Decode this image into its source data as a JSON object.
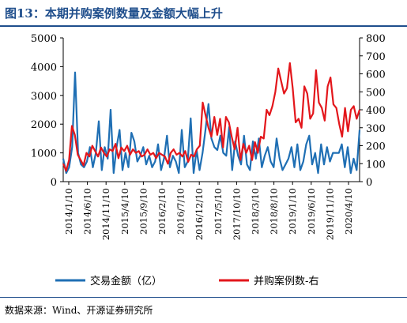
{
  "figure": {
    "title": "图13：本期并购案例数量及金额大幅上升",
    "source": "数据来源：Wind、开源证券研究所"
  },
  "colors": {
    "amount": "#1f6fb4",
    "count": "#e3161b",
    "title": "#1f4e8c"
  },
  "chart_data": {
    "type": "line",
    "title": "",
    "xlabel": "",
    "ylabel": "",
    "ylim": [
      0,
      5000
    ],
    "y2lim": [
      0,
      800
    ],
    "yticks": [
      "0",
      "1000",
      "2000",
      "3000",
      "4000",
      "5000"
    ],
    "y2ticks": [
      "0",
      "100",
      "200",
      "300",
      "400",
      "500",
      "600",
      "700",
      "800"
    ],
    "xticks": [
      "2014/1/10",
      "2014/6/10",
      "2014/11/10",
      "2015/4/10",
      "2015/9/10",
      "2016/2/10",
      "2016/7/10",
      "2016/12/10",
      "2017/5/10",
      "2017/10/10",
      "2018/3/10",
      "2018/8/10",
      "2019/1/10",
      "2019/6/10",
      "2019/11/10",
      "2020/4/10"
    ],
    "grid": false,
    "legend_position": "bottom",
    "series": [
      {
        "name": "交易金额（亿）",
        "axis": "left",
        "color": "#1f6fb4",
        "values": [
          800,
          300,
          500,
          1200,
          3800,
          1000,
          600,
          500,
          700,
          1200,
          500,
          1000,
          2100,
          400,
          1200,
          800,
          2500,
          300,
          1200,
          1800,
          400,
          1000,
          500,
          1700,
          1400,
          700,
          900,
          1200,
          600,
          900,
          500,
          700,
          1300,
          400,
          800,
          1600,
          500,
          900,
          700,
          300,
          1800,
          500,
          700,
          2200,
          300,
          1100,
          400,
          1000,
          1800,
          2700,
          1500,
          1200,
          1100,
          1600,
          1000,
          900,
          1900,
          400,
          1400,
          900,
          600,
          1600,
          600,
          400,
          1400,
          800,
          1500,
          500,
          900,
          1200,
          700,
          500,
          1500,
          800,
          400,
          600,
          800,
          1200,
          500,
          1300,
          400,
          700,
          1300,
          1600,
          600,
          1000,
          300,
          1300,
          600,
          1200,
          700,
          1000,
          1000,
          1000,
          1300,
          500,
          1200,
          300,
          800,
          400,
          1800
        ]
      },
      {
        "name": "并购案例数-右",
        "axis": "right",
        "color": "#e3161b",
        "values": [
          100,
          60,
          120,
          310,
          260,
          150,
          120,
          90,
          160,
          140,
          200,
          170,
          140,
          190,
          160,
          140,
          180,
          170,
          210,
          130,
          190,
          170,
          200,
          150,
          180,
          160,
          170,
          140,
          150,
          180,
          150,
          160,
          130,
          160,
          150,
          140,
          100,
          160,
          180,
          150,
          160,
          140,
          170,
          110,
          150,
          140,
          180,
          200,
          440,
          370,
          300,
          250,
          360,
          260,
          350,
          190,
          360,
          330,
          250,
          180,
          300,
          120,
          210,
          160,
          200,
          120,
          220,
          160,
          250,
          240,
          400,
          370,
          420,
          500,
          630,
          560,
          490,
          520,
          660,
          520,
          330,
          350,
          300,
          530,
          490,
          350,
          380,
          620,
          440,
          410,
          340,
          530,
          580,
          430,
          410,
          320,
          250,
          410,
          280,
          400,
          420,
          350,
          400
        ]
      }
    ]
  }
}
